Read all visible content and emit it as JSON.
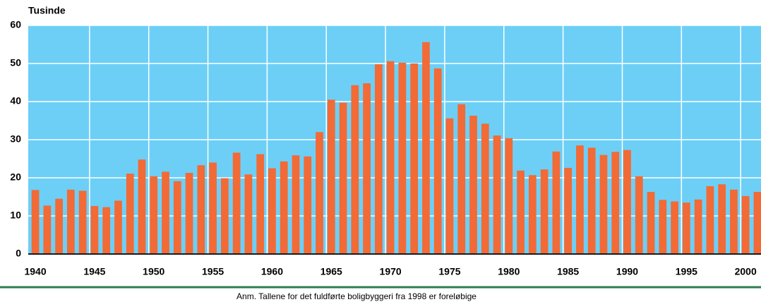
{
  "chart_data": {
    "type": "bar",
    "y_label": "Tusinde",
    "note": "Anm. Tallene for det fuldførte boligbyggeri fra 1998 er foreløbige",
    "x": [
      1940,
      1941,
      1942,
      1943,
      1944,
      1945,
      1946,
      1947,
      1948,
      1949,
      1950,
      1951,
      1952,
      1953,
      1954,
      1955,
      1956,
      1957,
      1958,
      1959,
      1960,
      1961,
      1962,
      1963,
      1964,
      1965,
      1966,
      1967,
      1968,
      1969,
      1970,
      1971,
      1972,
      1973,
      1974,
      1975,
      1976,
      1977,
      1978,
      1979,
      1980,
      1981,
      1982,
      1983,
      1984,
      1985,
      1986,
      1987,
      1988,
      1989,
      1990,
      1991,
      1992,
      1993,
      1994,
      1995,
      1996,
      1997,
      1998,
      1999,
      2000,
      2001
    ],
    "values": [
      16.8,
      12.7,
      14.5,
      16.9,
      16.6,
      12.6,
      12.3,
      14.0,
      21.1,
      24.8,
      20.4,
      21.6,
      19.1,
      21.3,
      23.3,
      24.0,
      19.9,
      26.6,
      20.9,
      26.2,
      22.5,
      24.3,
      25.9,
      25.6,
      32.0,
      40.5,
      39.7,
      44.3,
      44.8,
      49.8,
      50.6,
      50.2,
      50.0,
      55.6,
      48.7,
      35.6,
      39.3,
      36.3,
      34.2,
      31.1,
      30.4,
      21.9,
      20.7,
      22.2,
      26.9,
      22.6,
      28.5,
      27.9,
      26.0,
      26.8,
      27.3,
      20.4,
      16.3,
      14.2,
      13.8,
      13.5,
      14.3,
      17.8,
      18.3,
      16.9,
      15.2,
      16.3
    ],
    "color": "#f26a36",
    "background": "#6dcff6",
    "xlim": [
      1939.4,
      2001.3
    ],
    "xticks": [
      1940,
      1945,
      1950,
      1955,
      1960,
      1965,
      1970,
      1975,
      1980,
      1985,
      1990,
      1995,
      2000
    ],
    "ylim": [
      0,
      60
    ],
    "yticks": [
      0,
      10,
      20,
      30,
      40,
      50,
      60
    ],
    "grid": true
  }
}
